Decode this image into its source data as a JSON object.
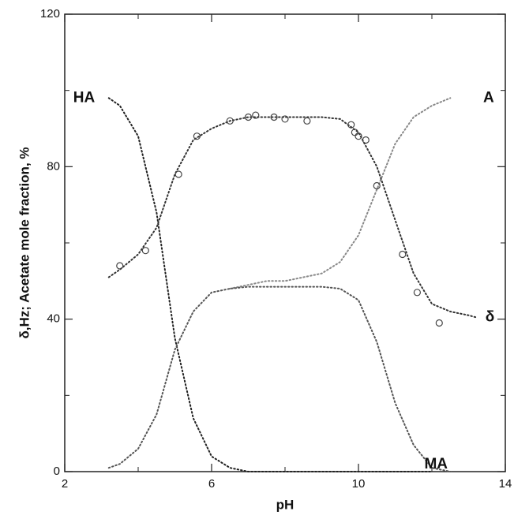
{
  "chart_data": {
    "type": "line",
    "x_label": "pH",
    "y_label": "δ,Hz; Acetate mole fraction, %",
    "xlim": [
      2,
      14
    ],
    "ylim": [
      0,
      120
    ],
    "xticks": [
      2,
      6,
      10,
      14
    ],
    "yticks": [
      0,
      40,
      80,
      120
    ],
    "xminorticks": [
      4,
      8,
      12
    ],
    "yminorticks": [
      20,
      60,
      100
    ],
    "series": [
      {
        "name": "HA",
        "color": "#222222",
        "x": [
          3.2,
          3.5,
          4,
          4.5,
          5,
          5.5,
          6,
          6.5,
          7,
          7.5,
          8,
          8.5,
          9,
          9.5,
          10,
          10.5,
          11,
          11.5,
          12,
          12.5,
          13,
          13.2
        ],
        "values": [
          98,
          96,
          88,
          68,
          35,
          14,
          4,
          1,
          0,
          0,
          0,
          0,
          0,
          0,
          0,
          0,
          0,
          0,
          0,
          null,
          null,
          null
        ]
      },
      {
        "name": "A",
        "color": "#888888",
        "x": [
          3.2,
          3.5,
          4,
          4.5,
          5,
          5.5,
          6,
          6.5,
          7,
          7.5,
          8,
          8.5,
          9,
          9.5,
          10,
          10.5,
          11,
          11.5,
          12,
          12.5,
          13,
          13.2
        ],
        "values": [
          null,
          null,
          null,
          null,
          null,
          null,
          null,
          48,
          49,
          50,
          50,
          51,
          52,
          55,
          62,
          74,
          86,
          93,
          96,
          98,
          null,
          null
        ]
      },
      {
        "name": "δ",
        "color": "#333333",
        "x": [
          3.2,
          3.5,
          4,
          4.5,
          5,
          5.5,
          6,
          6.5,
          7,
          7.5,
          8,
          8.5,
          9,
          9.5,
          10,
          10.5,
          11,
          11.5,
          12,
          12.5,
          13,
          13.2
        ],
        "values": [
          51,
          53,
          57,
          64,
          78,
          87,
          90,
          92,
          93,
          93,
          93,
          93,
          93,
          92.5,
          89,
          80,
          66,
          52,
          44,
          42,
          41,
          40.5
        ]
      },
      {
        "name": "MA",
        "color": "#555555",
        "x": [
          3.2,
          3.5,
          4,
          4.5,
          5,
          5.5,
          6,
          6.5,
          7,
          7.5,
          8,
          8.5,
          9,
          9.5,
          10,
          10.5,
          11,
          11.5,
          12,
          12.5,
          13,
          13.2
        ],
        "values": [
          1,
          2,
          6,
          15,
          32,
          42,
          47,
          48,
          48.5,
          48.5,
          48.5,
          48.5,
          48.5,
          48,
          45,
          34,
          18,
          7,
          1,
          0,
          null,
          null
        ]
      }
    ],
    "scatter": {
      "color": "#444444",
      "x": [
        3.5,
        4.2,
        5.1,
        5.6,
        6.5,
        7,
        7.2,
        7.7,
        8,
        8.6,
        9.8,
        9.9,
        10,
        10.2,
        10.5,
        11.2,
        11.6,
        12.2
      ],
      "values": [
        54,
        58,
        78,
        88,
        92,
        93,
        93.5,
        93,
        92.5,
        92,
        91,
        89,
        88,
        87,
        75,
        57,
        47,
        39
      ]
    }
  }
}
